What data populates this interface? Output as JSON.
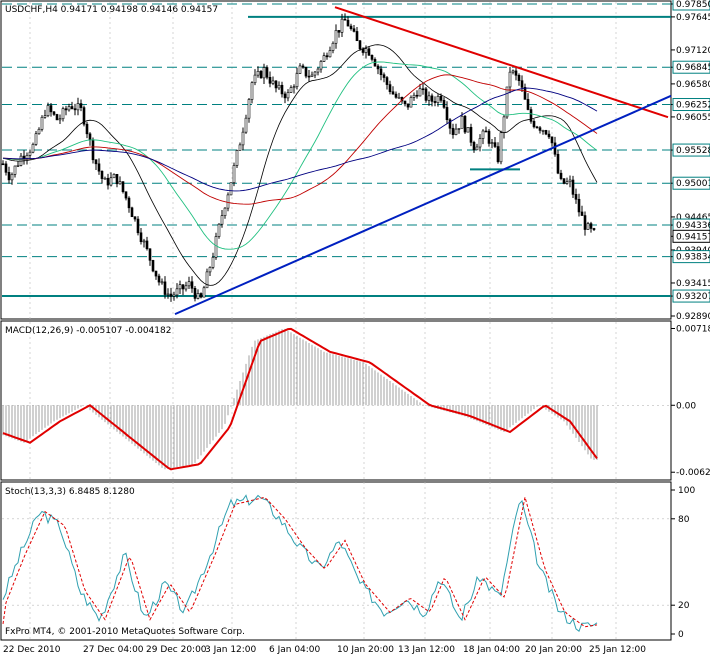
{
  "main": {
    "title": "USDCHF,H4  0.94171 0.94198 0.94146 0.94157",
    "price_ticks": [
      "0.97850",
      "0.97645",
      "0.97120",
      "0.96845",
      "0.96580",
      "0.96252",
      "0.96055",
      "0.95528",
      "0.95001",
      "0.94465",
      "0.94336",
      "0.94157",
      "0.93940",
      "0.93834",
      "0.93415",
      "0.93207",
      "0.92890"
    ],
    "boxed_levels": [
      "0.97850",
      "0.96845",
      "0.96252",
      "0.95528",
      "0.95001",
      "0.94336",
      "0.93834",
      "0.93207"
    ],
    "current_price": "0.94157",
    "colors": {
      "green_level": "#008080",
      "red_trend": "#e00000",
      "blue_trend": "#0020c0"
    }
  },
  "macd": {
    "title": "MACD(12,26,9) -0.005107 -0.004182",
    "ticks": [
      "0.00718",
      "0.00",
      "-0.00626"
    ]
  },
  "stoch": {
    "title": "Stoch(13,3,3) 6.8485 8.1280",
    "ticks": [
      "100",
      "80",
      "20",
      "0"
    ]
  },
  "footer": {
    "copyright": "FxPro MT4, © 2001-2010 MetaQuotes Software Corp."
  },
  "time_labels": [
    "22 Dec 2010",
    "27 Dec 04:00",
    "29 Dec 20:00",
    "3 Jan 12:00",
    "6 Jan 04:00",
    "10 Jan 20:00",
    "13 Jan 12:00",
    "18 Jan 04:00",
    "20 Jan 20:00",
    "25 Jan 12:00"
  ],
  "chart_data": {
    "type": "line",
    "symbol": "USDCHF",
    "timeframe": "H4",
    "ylim": [
      0.9289,
      0.9785
    ],
    "price_path": [
      [
        0,
        0.954
      ],
      [
        10,
        0.951
      ],
      [
        22,
        0.9545
      ],
      [
        34,
        0.956
      ],
      [
        46,
        0.962
      ],
      [
        58,
        0.96
      ],
      [
        70,
        0.9625
      ],
      [
        82,
        0.9615
      ],
      [
        94,
        0.954
      ],
      [
        104,
        0.95
      ],
      [
        116,
        0.951
      ],
      [
        128,
        0.947
      ],
      [
        140,
        0.942
      ],
      [
        150,
        0.938
      ],
      [
        160,
        0.934
      ],
      [
        170,
        0.932
      ],
      [
        180,
        0.933
      ],
      [
        190,
        0.934
      ],
      [
        200,
        0.931
      ],
      [
        212,
        0.938
      ],
      [
        222,
        0.945
      ],
      [
        232,
        0.951
      ],
      [
        242,
        0.958
      ],
      [
        252,
        0.966
      ],
      [
        264,
        0.968
      ],
      [
        276,
        0.965
      ],
      [
        288,
        0.964
      ],
      [
        300,
        0.968
      ],
      [
        312,
        0.967
      ],
      [
        324,
        0.97
      ],
      [
        336,
        0.974
      ],
      [
        346,
        0.976
      ],
      [
        358,
        0.972
      ],
      [
        370,
        0.971
      ],
      [
        382,
        0.967
      ],
      [
        394,
        0.964
      ],
      [
        406,
        0.962
      ],
      [
        418,
        0.965
      ],
      [
        430,
        0.963
      ],
      [
        442,
        0.964
      ],
      [
        452,
        0.958
      ],
      [
        462,
        0.96
      ],
      [
        474,
        0.956
      ],
      [
        486,
        0.958
      ],
      [
        498,
        0.954
      ],
      [
        510,
        0.968
      ],
      [
        520,
        0.966
      ],
      [
        530,
        0.96
      ],
      [
        540,
        0.959
      ],
      [
        550,
        0.958
      ],
      [
        560,
        0.95
      ],
      [
        570,
        0.95
      ],
      [
        578,
        0.946
      ],
      [
        586,
        0.943
      ],
      [
        596,
        0.9416
      ]
    ],
    "series": [
      {
        "name": "MACD",
        "values": [
          [
            0,
            -0.0025
          ],
          [
            30,
            -0.0035
          ],
          [
            60,
            -0.0015
          ],
          [
            90,
            0.0
          ],
          [
            130,
            -0.003
          ],
          [
            170,
            -0.006
          ],
          [
            200,
            -0.0055
          ],
          [
            230,
            -0.002
          ],
          [
            260,
            0.006
          ],
          [
            290,
            0.0072
          ],
          [
            330,
            0.005
          ],
          [
            370,
            0.004
          ],
          [
            400,
            0.002
          ],
          [
            430,
            0.0
          ],
          [
            470,
            -0.001
          ],
          [
            510,
            -0.0025
          ],
          [
            545,
            0.0
          ],
          [
            570,
            -0.0015
          ],
          [
            598,
            -0.0051
          ]
        ]
      },
      {
        "name": "Stoch",
        "values": [
          [
            0,
            20
          ],
          [
            20,
            55
          ],
          [
            40,
            85
          ],
          [
            60,
            75
          ],
          [
            80,
            30
          ],
          [
            100,
            10
          ],
          [
            125,
            55
          ],
          [
            145,
            10
          ],
          [
            165,
            35
          ],
          [
            185,
            15
          ],
          [
            210,
            55
          ],
          [
            230,
            90
          ],
          [
            260,
            95
          ],
          [
            280,
            80
          ],
          [
            300,
            60
          ],
          [
            320,
            45
          ],
          [
            340,
            65
          ],
          [
            360,
            35
          ],
          [
            385,
            15
          ],
          [
            405,
            25
          ],
          [
            425,
            15
          ],
          [
            440,
            40
          ],
          [
            460,
            10
          ],
          [
            480,
            40
          ],
          [
            500,
            25
          ],
          [
            520,
            95
          ],
          [
            540,
            45
          ],
          [
            560,
            15
          ],
          [
            580,
            5
          ],
          [
            598,
            7
          ]
        ]
      }
    ]
  }
}
